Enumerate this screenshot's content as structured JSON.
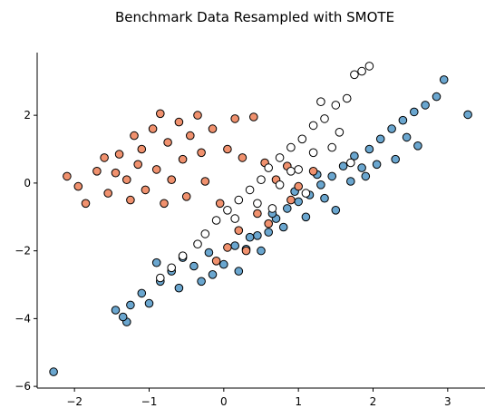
{
  "chart_data": {
    "type": "scatter",
    "title": "Benchmark Data Resampled with SMOTE",
    "xlabel": "",
    "ylabel": "",
    "xlim": [
      -2.5,
      3.5
    ],
    "ylim": [
      -6.05,
      3.85
    ],
    "x_ticks": [
      -2,
      -1,
      0,
      1,
      2,
      3
    ],
    "y_ticks": [
      -6,
      -4,
      -2,
      0,
      2
    ],
    "x_tick_labels": [
      "−2",
      "−1",
      "0",
      "1",
      "2",
      "3"
    ],
    "y_tick_labels": [
      "−6",
      "−4",
      "−2",
      "0",
      "2"
    ],
    "spines": [
      "left",
      "bottom"
    ],
    "grid": false,
    "legend": "none",
    "marker_edge_color": "#000000",
    "series": [
      {
        "color": "#6aa6cf",
        "points": [
          [
            -2.28,
            -5.57
          ],
          [
            -1.45,
            -3.75
          ],
          [
            -1.3,
            -4.1
          ],
          [
            -1.25,
            -3.6
          ],
          [
            -1.1,
            -3.25
          ],
          [
            -1.0,
            -3.55
          ],
          [
            -0.85,
            -2.9
          ],
          [
            -0.9,
            -2.35
          ],
          [
            -0.7,
            -2.6
          ],
          [
            -0.55,
            -2.2
          ],
          [
            -0.4,
            -2.45
          ],
          [
            -0.2,
            -2.05
          ],
          [
            0.0,
            -2.4
          ],
          [
            0.15,
            -1.85
          ],
          [
            0.3,
            -1.95
          ],
          [
            0.45,
            -1.55
          ],
          [
            0.6,
            -1.45
          ],
          [
            0.7,
            -1.05
          ],
          [
            0.85,
            -0.75
          ],
          [
            1.0,
            -0.55
          ],
          [
            1.15,
            -0.35
          ],
          [
            1.3,
            -0.05
          ],
          [
            1.45,
            0.2
          ],
          [
            1.6,
            0.5
          ],
          [
            1.75,
            0.8
          ],
          [
            1.95,
            1.0
          ],
          [
            2.1,
            1.3
          ],
          [
            2.25,
            1.6
          ],
          [
            2.4,
            1.85
          ],
          [
            2.55,
            2.1
          ],
          [
            2.7,
            2.3
          ],
          [
            2.85,
            2.55
          ],
          [
            2.95,
            3.05
          ],
          [
            3.27,
            2.02
          ],
          [
            2.3,
            0.7
          ],
          [
            2.6,
            1.1
          ],
          [
            1.9,
            0.2
          ],
          [
            1.5,
            -0.8
          ],
          [
            1.1,
            -1.0
          ],
          [
            0.8,
            -1.3
          ],
          [
            0.5,
            -2.0
          ],
          [
            0.2,
            -2.6
          ],
          [
            -0.3,
            -2.9
          ],
          [
            -0.6,
            -3.1
          ],
          [
            -1.35,
            -3.95
          ],
          [
            0.95,
            -0.25
          ],
          [
            1.25,
            0.25
          ],
          [
            1.7,
            0.05
          ],
          [
            2.05,
            0.55
          ],
          [
            2.45,
            1.35
          ],
          [
            -0.15,
            -2.7
          ],
          [
            0.35,
            -1.6
          ],
          [
            0.65,
            -0.9
          ],
          [
            1.35,
            -0.45
          ],
          [
            1.85,
            0.45
          ]
        ]
      },
      {
        "color": "#f0916e",
        "points": [
          [
            -2.1,
            0.2
          ],
          [
            -1.95,
            -0.1
          ],
          [
            -1.85,
            -0.6
          ],
          [
            -1.7,
            0.35
          ],
          [
            -1.55,
            -0.3
          ],
          [
            -1.45,
            0.3
          ],
          [
            -1.4,
            0.85
          ],
          [
            -1.3,
            0.1
          ],
          [
            -1.25,
            -0.5
          ],
          [
            -1.15,
            0.55
          ],
          [
            -1.1,
            1.0
          ],
          [
            -1.05,
            -0.2
          ],
          [
            -0.95,
            1.6
          ],
          [
            -0.9,
            0.4
          ],
          [
            -0.85,
            2.05
          ],
          [
            -0.8,
            -0.6
          ],
          [
            -0.75,
            1.2
          ],
          [
            -0.7,
            0.1
          ],
          [
            -0.6,
            1.8
          ],
          [
            -0.55,
            0.7
          ],
          [
            -0.5,
            -0.4
          ],
          [
            -0.45,
            1.4
          ],
          [
            -0.35,
            2.0
          ],
          [
            -0.3,
            0.9
          ],
          [
            -0.25,
            0.05
          ],
          [
            -0.15,
            1.6
          ],
          [
            -0.05,
            -0.6
          ],
          [
            0.05,
            1.0
          ],
          [
            0.15,
            1.9
          ],
          [
            0.25,
            0.75
          ],
          [
            0.4,
            1.95
          ],
          [
            0.55,
            0.6
          ],
          [
            0.7,
            0.1
          ],
          [
            0.85,
            0.5
          ],
          [
            1.0,
            -0.1
          ],
          [
            1.2,
            0.35
          ],
          [
            0.45,
            -0.9
          ],
          [
            0.2,
            -1.4
          ],
          [
            0.05,
            -1.9
          ],
          [
            -0.1,
            -2.3
          ],
          [
            0.3,
            -2.0
          ],
          [
            0.6,
            -1.2
          ],
          [
            0.9,
            -0.5
          ],
          [
            -1.6,
            0.75
          ],
          [
            -1.2,
            1.4
          ]
        ]
      },
      {
        "color": "#ffffff",
        "points": [
          [
            1.75,
            3.2
          ],
          [
            1.85,
            3.3
          ],
          [
            1.95,
            3.45
          ],
          [
            1.65,
            2.5
          ],
          [
            1.5,
            2.3
          ],
          [
            1.35,
            1.9
          ],
          [
            1.2,
            1.7
          ],
          [
            1.05,
            1.3
          ],
          [
            0.9,
            1.05
          ],
          [
            0.75,
            0.75
          ],
          [
            0.6,
            0.45
          ],
          [
            0.5,
            0.1
          ],
          [
            0.35,
            -0.2
          ],
          [
            0.2,
            -0.5
          ],
          [
            0.05,
            -0.8
          ],
          [
            -0.1,
            -1.1
          ],
          [
            -0.25,
            -1.5
          ],
          [
            -0.35,
            -1.8
          ],
          [
            -0.55,
            -2.15
          ],
          [
            -0.7,
            -2.5
          ],
          [
            -0.85,
            -2.8
          ],
          [
            1.2,
            0.9
          ],
          [
            1.45,
            1.05
          ],
          [
            1.0,
            0.4
          ],
          [
            0.75,
            -0.05
          ],
          [
            0.45,
            -0.6
          ],
          [
            0.15,
            -1.05
          ],
          [
            1.3,
            2.4
          ],
          [
            1.55,
            1.5
          ],
          [
            0.9,
            0.35
          ],
          [
            1.1,
            -0.3
          ],
          [
            0.65,
            -0.75
          ],
          [
            1.7,
            0.6
          ]
        ]
      }
    ]
  }
}
